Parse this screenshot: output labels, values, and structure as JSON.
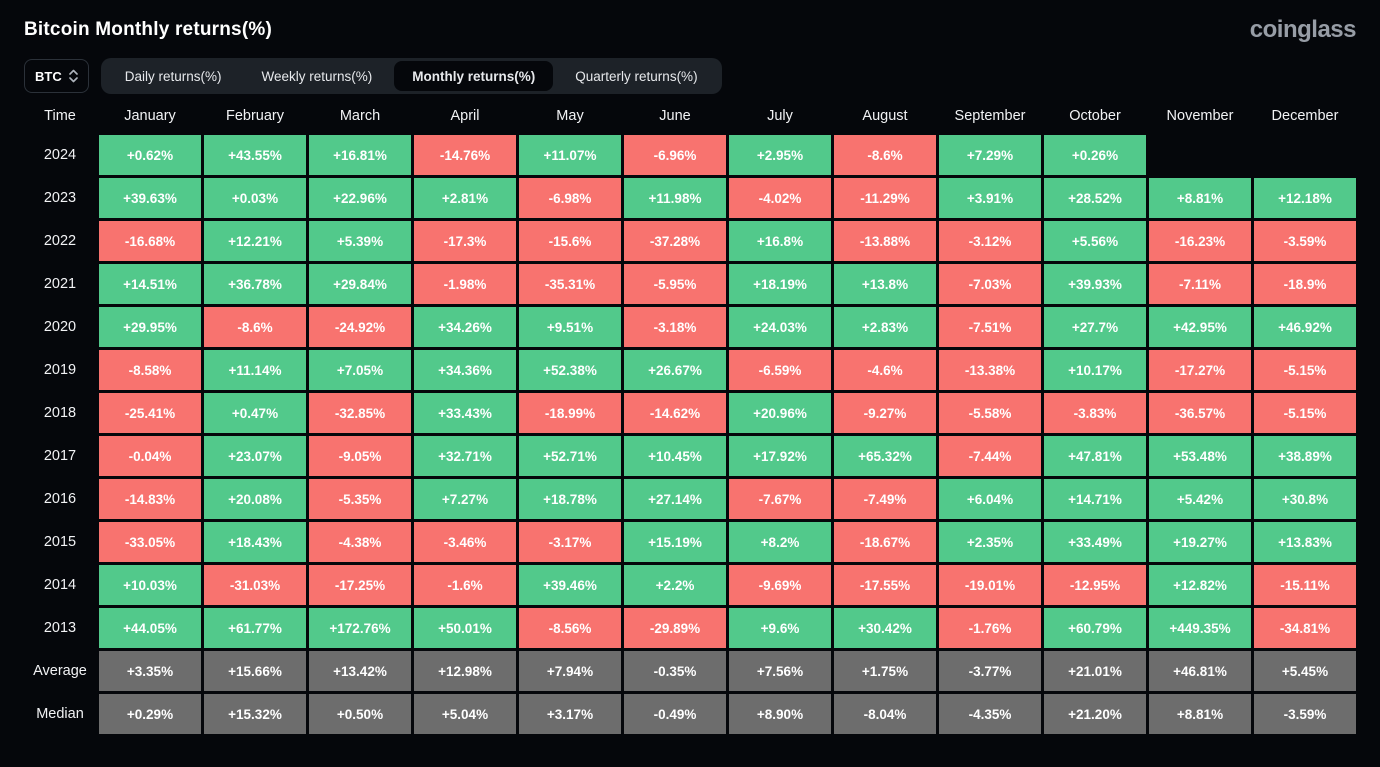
{
  "header": {
    "title": "Bitcoin Monthly returns(%)",
    "logo": "coinglass"
  },
  "controls": {
    "symbol_select": {
      "value": "BTC"
    },
    "tabs": [
      {
        "label": "Daily returns(%)",
        "active": false
      },
      {
        "label": "Weekly returns(%)",
        "active": false
      },
      {
        "label": "Monthly returns(%)",
        "active": true
      },
      {
        "label": "Quarterly returns(%)",
        "active": false
      }
    ]
  },
  "colors": {
    "positive": "#52c98b",
    "negative": "#f8736f",
    "summary": "#6d6d6d",
    "background": "#05070b"
  },
  "chart_data": {
    "type": "heatmap",
    "title": "Bitcoin Monthly returns(%)",
    "columns": [
      "Time",
      "January",
      "February",
      "March",
      "April",
      "May",
      "June",
      "July",
      "August",
      "September",
      "October",
      "November",
      "December"
    ],
    "rows": [
      {
        "label": "2024",
        "kind": "year",
        "values": [
          "+0.62%",
          "+43.55%",
          "+16.81%",
          "-14.76%",
          "+11.07%",
          "-6.96%",
          "+2.95%",
          "-8.6%",
          "+7.29%",
          "+0.26%",
          "",
          ""
        ]
      },
      {
        "label": "2023",
        "kind": "year",
        "values": [
          "+39.63%",
          "+0.03%",
          "+22.96%",
          "+2.81%",
          "-6.98%",
          "+11.98%",
          "-4.02%",
          "-11.29%",
          "+3.91%",
          "+28.52%",
          "+8.81%",
          "+12.18%"
        ]
      },
      {
        "label": "2022",
        "kind": "year",
        "values": [
          "-16.68%",
          "+12.21%",
          "+5.39%",
          "-17.3%",
          "-15.6%",
          "-37.28%",
          "+16.8%",
          "-13.88%",
          "-3.12%",
          "+5.56%",
          "-16.23%",
          "-3.59%"
        ]
      },
      {
        "label": "2021",
        "kind": "year",
        "values": [
          "+14.51%",
          "+36.78%",
          "+29.84%",
          "-1.98%",
          "-35.31%",
          "-5.95%",
          "+18.19%",
          "+13.8%",
          "-7.03%",
          "+39.93%",
          "-7.11%",
          "-18.9%"
        ]
      },
      {
        "label": "2020",
        "kind": "year",
        "values": [
          "+29.95%",
          "-8.6%",
          "-24.92%",
          "+34.26%",
          "+9.51%",
          "-3.18%",
          "+24.03%",
          "+2.83%",
          "-7.51%",
          "+27.7%",
          "+42.95%",
          "+46.92%"
        ]
      },
      {
        "label": "2019",
        "kind": "year",
        "values": [
          "-8.58%",
          "+11.14%",
          "+7.05%",
          "+34.36%",
          "+52.38%",
          "+26.67%",
          "-6.59%",
          "-4.6%",
          "-13.38%",
          "+10.17%",
          "-17.27%",
          "-5.15%"
        ]
      },
      {
        "label": "2018",
        "kind": "year",
        "values": [
          "-25.41%",
          "+0.47%",
          "-32.85%",
          "+33.43%",
          "-18.99%",
          "-14.62%",
          "+20.96%",
          "-9.27%",
          "-5.58%",
          "-3.83%",
          "-36.57%",
          "-5.15%"
        ]
      },
      {
        "label": "2017",
        "kind": "year",
        "values": [
          "-0.04%",
          "+23.07%",
          "-9.05%",
          "+32.71%",
          "+52.71%",
          "+10.45%",
          "+17.92%",
          "+65.32%",
          "-7.44%",
          "+47.81%",
          "+53.48%",
          "+38.89%"
        ]
      },
      {
        "label": "2016",
        "kind": "year",
        "values": [
          "-14.83%",
          "+20.08%",
          "-5.35%",
          "+7.27%",
          "+18.78%",
          "+27.14%",
          "-7.67%",
          "-7.49%",
          "+6.04%",
          "+14.71%",
          "+5.42%",
          "+30.8%"
        ]
      },
      {
        "label": "2015",
        "kind": "year",
        "values": [
          "-33.05%",
          "+18.43%",
          "-4.38%",
          "-3.46%",
          "-3.17%",
          "+15.19%",
          "+8.2%",
          "-18.67%",
          "+2.35%",
          "+33.49%",
          "+19.27%",
          "+13.83%"
        ]
      },
      {
        "label": "2014",
        "kind": "year",
        "values": [
          "+10.03%",
          "-31.03%",
          "-17.25%",
          "-1.6%",
          "+39.46%",
          "+2.2%",
          "-9.69%",
          "-17.55%",
          "-19.01%",
          "-12.95%",
          "+12.82%",
          "-15.11%"
        ]
      },
      {
        "label": "2013",
        "kind": "year",
        "values": [
          "+44.05%",
          "+61.77%",
          "+172.76%",
          "+50.01%",
          "-8.56%",
          "-29.89%",
          "+9.6%",
          "+30.42%",
          "-1.76%",
          "+60.79%",
          "+449.35%",
          "-34.81%"
        ]
      },
      {
        "label": "Average",
        "kind": "summary",
        "values": [
          "+3.35%",
          "+15.66%",
          "+13.42%",
          "+12.98%",
          "+7.94%",
          "-0.35%",
          "+7.56%",
          "+1.75%",
          "-3.77%",
          "+21.01%",
          "+46.81%",
          "+5.45%"
        ]
      },
      {
        "label": "Median",
        "kind": "summary",
        "values": [
          "+0.29%",
          "+15.32%",
          "+0.50%",
          "+5.04%",
          "+3.17%",
          "-0.49%",
          "+8.90%",
          "-8.04%",
          "-4.35%",
          "+21.20%",
          "+8.81%",
          "-3.59%"
        ]
      }
    ]
  }
}
